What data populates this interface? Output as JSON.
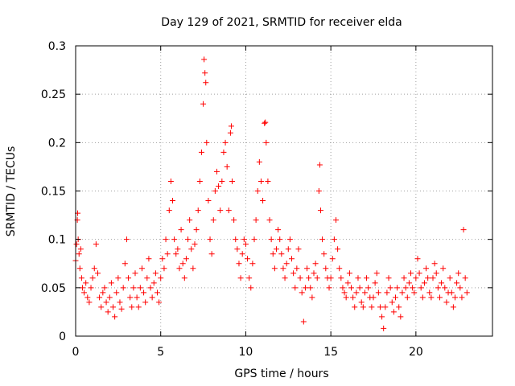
{
  "chart_data": {
    "type": "scatter",
    "title": "Day 129 of 2021, SRMTID for receiver elda",
    "xlabel": "GPS time / hours",
    "ylabel": "SRMTID / TECUs",
    "xlim": [
      0,
      24.5
    ],
    "ylim": [
      0,
      0.3
    ],
    "grid": true,
    "marker": "+",
    "colors": {
      "points": "#ff0000",
      "grid": "#a0a0a0",
      "axis": "#000000"
    },
    "x_ticks": [
      "0",
      "5",
      "10",
      "15",
      "20"
    ],
    "x_tick_values": [
      0,
      5,
      10,
      15,
      20
    ],
    "y_ticks": [
      "0",
      "0.05",
      "0.1",
      "0.15",
      "0.2",
      "0.25",
      "0.3"
    ],
    "y_tick_values": [
      0,
      0.05,
      0.1,
      0.15,
      0.2,
      0.25,
      0.3
    ],
    "series": [
      {
        "name": "SRMTID",
        "points": [
          [
            0.0,
            0.078
          ],
          [
            0.05,
            0.095
          ],
          [
            0.1,
            0.12
          ],
          [
            0.12,
            0.127
          ],
          [
            0.15,
            0.1
          ],
          [
            0.2,
            0.085
          ],
          [
            0.25,
            0.07
          ],
          [
            0.3,
            0.09
          ],
          [
            0.35,
            0.06
          ],
          [
            0.4,
            0.05
          ],
          [
            0.5,
            0.045
          ],
          [
            0.6,
            0.055
          ],
          [
            0.7,
            0.04
          ],
          [
            0.8,
            0.035
          ],
          [
            0.9,
            0.05
          ],
          [
            1.0,
            0.06
          ],
          [
            1.1,
            0.07
          ],
          [
            1.2,
            0.095
          ],
          [
            1.3,
            0.065
          ],
          [
            1.4,
            0.04
          ],
          [
            1.5,
            0.03
          ],
          [
            1.6,
            0.045
          ],
          [
            1.7,
            0.05
          ],
          [
            1.8,
            0.035
          ],
          [
            1.9,
            0.025
          ],
          [
            2.0,
            0.04
          ],
          [
            2.1,
            0.055
          ],
          [
            2.2,
            0.03
          ],
          [
            2.3,
            0.02
          ],
          [
            2.4,
            0.045
          ],
          [
            2.5,
            0.06
          ],
          [
            2.6,
            0.035
          ],
          [
            2.7,
            0.028
          ],
          [
            2.8,
            0.05
          ],
          [
            2.9,
            0.075
          ],
          [
            3.0,
            0.1
          ],
          [
            3.1,
            0.06
          ],
          [
            3.2,
            0.04
          ],
          [
            3.3,
            0.03
          ],
          [
            3.4,
            0.05
          ],
          [
            3.5,
            0.065
          ],
          [
            3.6,
            0.04
          ],
          [
            3.7,
            0.03
          ],
          [
            3.8,
            0.05
          ],
          [
            3.9,
            0.07
          ],
          [
            4.0,
            0.045
          ],
          [
            4.1,
            0.035
          ],
          [
            4.2,
            0.06
          ],
          [
            4.3,
            0.08
          ],
          [
            4.4,
            0.05
          ],
          [
            4.5,
            0.04
          ],
          [
            4.6,
            0.055
          ],
          [
            4.7,
            0.065
          ],
          [
            4.8,
            0.045
          ],
          [
            4.9,
            0.035
          ],
          [
            5.0,
            0.06
          ],
          [
            5.1,
            0.08
          ],
          [
            5.2,
            0.07
          ],
          [
            5.3,
            0.1
          ],
          [
            5.4,
            0.085
          ],
          [
            5.5,
            0.13
          ],
          [
            5.6,
            0.16
          ],
          [
            5.7,
            0.14
          ],
          [
            5.8,
            0.1
          ],
          [
            5.9,
            0.085
          ],
          [
            6.0,
            0.09
          ],
          [
            6.1,
            0.07
          ],
          [
            6.2,
            0.11
          ],
          [
            6.3,
            0.075
          ],
          [
            6.4,
            0.06
          ],
          [
            6.5,
            0.08
          ],
          [
            6.6,
            0.1
          ],
          [
            6.7,
            0.12
          ],
          [
            6.8,
            0.09
          ],
          [
            6.9,
            0.07
          ],
          [
            7.0,
            0.095
          ],
          [
            7.1,
            0.11
          ],
          [
            7.2,
            0.13
          ],
          [
            7.3,
            0.16
          ],
          [
            7.4,
            0.19
          ],
          [
            7.5,
            0.24
          ],
          [
            7.55,
            0.286
          ],
          [
            7.6,
            0.272
          ],
          [
            7.65,
            0.262
          ],
          [
            7.7,
            0.2
          ],
          [
            7.8,
            0.14
          ],
          [
            7.9,
            0.1
          ],
          [
            8.0,
            0.085
          ],
          [
            8.1,
            0.12
          ],
          [
            8.2,
            0.15
          ],
          [
            8.3,
            0.17
          ],
          [
            8.4,
            0.155
          ],
          [
            8.5,
            0.13
          ],
          [
            8.6,
            0.16
          ],
          [
            8.7,
            0.19
          ],
          [
            8.8,
            0.2
          ],
          [
            8.9,
            0.175
          ],
          [
            9.0,
            0.13
          ],
          [
            9.1,
            0.21
          ],
          [
            9.15,
            0.217
          ],
          [
            9.2,
            0.16
          ],
          [
            9.3,
            0.12
          ],
          [
            9.4,
            0.1
          ],
          [
            9.5,
            0.09
          ],
          [
            9.6,
            0.075
          ],
          [
            9.7,
            0.06
          ],
          [
            9.8,
            0.085
          ],
          [
            9.9,
            0.1
          ],
          [
            10.0,
            0.095
          ],
          [
            10.1,
            0.08
          ],
          [
            10.2,
            0.06
          ],
          [
            10.3,
            0.05
          ],
          [
            10.4,
            0.075
          ],
          [
            10.5,
            0.1
          ],
          [
            10.6,
            0.12
          ],
          [
            10.7,
            0.15
          ],
          [
            10.8,
            0.18
          ],
          [
            10.9,
            0.16
          ],
          [
            11.0,
            0.14
          ],
          [
            11.1,
            0.22
          ],
          [
            11.15,
            0.221
          ],
          [
            11.2,
            0.2
          ],
          [
            11.3,
            0.16
          ],
          [
            11.4,
            0.12
          ],
          [
            11.5,
            0.1
          ],
          [
            11.6,
            0.085
          ],
          [
            11.7,
            0.07
          ],
          [
            11.8,
            0.09
          ],
          [
            11.9,
            0.11
          ],
          [
            12.0,
            0.1
          ],
          [
            12.1,
            0.085
          ],
          [
            12.2,
            0.07
          ],
          [
            12.3,
            0.06
          ],
          [
            12.4,
            0.075
          ],
          [
            12.5,
            0.09
          ],
          [
            12.6,
            0.1
          ],
          [
            12.7,
            0.08
          ],
          [
            12.8,
            0.065
          ],
          [
            12.9,
            0.05
          ],
          [
            13.0,
            0.07
          ],
          [
            13.1,
            0.09
          ],
          [
            13.2,
            0.06
          ],
          [
            13.3,
            0.045
          ],
          [
            13.4,
            0.015
          ],
          [
            13.5,
            0.05
          ],
          [
            13.6,
            0.07
          ],
          [
            13.7,
            0.06
          ],
          [
            13.8,
            0.05
          ],
          [
            13.9,
            0.04
          ],
          [
            14.0,
            0.065
          ],
          [
            14.1,
            0.075
          ],
          [
            14.2,
            0.06
          ],
          [
            14.3,
            0.15
          ],
          [
            14.35,
            0.177
          ],
          [
            14.4,
            0.13
          ],
          [
            14.5,
            0.1
          ],
          [
            14.6,
            0.085
          ],
          [
            14.7,
            0.07
          ],
          [
            14.8,
            0.06
          ],
          [
            14.9,
            0.05
          ],
          [
            15.0,
            0.06
          ],
          [
            15.1,
            0.08
          ],
          [
            15.2,
            0.1
          ],
          [
            15.3,
            0.12
          ],
          [
            15.4,
            0.09
          ],
          [
            15.5,
            0.07
          ],
          [
            15.6,
            0.06
          ],
          [
            15.7,
            0.05
          ],
          [
            15.8,
            0.045
          ],
          [
            15.9,
            0.04
          ],
          [
            16.0,
            0.055
          ],
          [
            16.1,
            0.065
          ],
          [
            16.2,
            0.05
          ],
          [
            16.3,
            0.04
          ],
          [
            16.4,
            0.03
          ],
          [
            16.5,
            0.045
          ],
          [
            16.6,
            0.06
          ],
          [
            16.7,
            0.05
          ],
          [
            16.8,
            0.035
          ],
          [
            16.9,
            0.03
          ],
          [
            17.0,
            0.045
          ],
          [
            17.1,
            0.06
          ],
          [
            17.2,
            0.05
          ],
          [
            17.3,
            0.04
          ],
          [
            17.4,
            0.03
          ],
          [
            17.5,
            0.04
          ],
          [
            17.6,
            0.055
          ],
          [
            17.7,
            0.065
          ],
          [
            17.8,
            0.045
          ],
          [
            17.9,
            0.03
          ],
          [
            18.0,
            0.02
          ],
          [
            18.1,
            0.008
          ],
          [
            18.2,
            0.03
          ],
          [
            18.3,
            0.045
          ],
          [
            18.4,
            0.06
          ],
          [
            18.5,
            0.05
          ],
          [
            18.6,
            0.035
          ],
          [
            18.7,
            0.025
          ],
          [
            18.8,
            0.04
          ],
          [
            18.9,
            0.05
          ],
          [
            19.0,
            0.03
          ],
          [
            19.1,
            0.02
          ],
          [
            19.2,
            0.045
          ],
          [
            19.3,
            0.06
          ],
          [
            19.4,
            0.05
          ],
          [
            19.5,
            0.04
          ],
          [
            19.6,
            0.055
          ],
          [
            19.7,
            0.065
          ],
          [
            19.8,
            0.05
          ],
          [
            19.9,
            0.045
          ],
          [
            20.0,
            0.06
          ],
          [
            20.1,
            0.08
          ],
          [
            20.2,
            0.065
          ],
          [
            20.3,
            0.05
          ],
          [
            20.4,
            0.04
          ],
          [
            20.5,
            0.055
          ],
          [
            20.6,
            0.07
          ],
          [
            20.7,
            0.06
          ],
          [
            20.8,
            0.045
          ],
          [
            20.9,
            0.04
          ],
          [
            21.0,
            0.06
          ],
          [
            21.1,
            0.075
          ],
          [
            21.2,
            0.065
          ],
          [
            21.3,
            0.05
          ],
          [
            21.4,
            0.04
          ],
          [
            21.5,
            0.055
          ],
          [
            21.6,
            0.07
          ],
          [
            21.7,
            0.05
          ],
          [
            21.8,
            0.035
          ],
          [
            21.9,
            0.045
          ],
          [
            22.0,
            0.06
          ],
          [
            22.1,
            0.045
          ],
          [
            22.2,
            0.03
          ],
          [
            22.3,
            0.04
          ],
          [
            22.4,
            0.055
          ],
          [
            22.5,
            0.065
          ],
          [
            22.6,
            0.05
          ],
          [
            22.7,
            0.04
          ],
          [
            22.8,
            0.11
          ],
          [
            22.9,
            0.06
          ],
          [
            23.0,
            0.045
          ]
        ]
      }
    ]
  }
}
